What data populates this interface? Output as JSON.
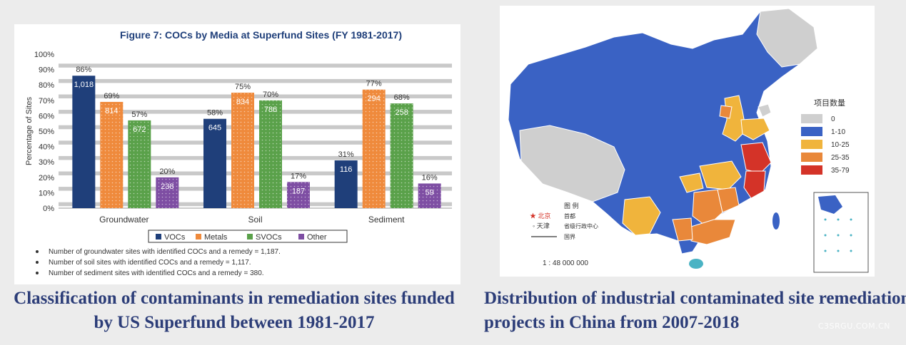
{
  "chart_data": {
    "type": "bar",
    "title": "Figure 7: COCs by Media at Superfund Sites (FY 1981-2017)",
    "ylabel": "Percentage of Sites",
    "xlabel": "",
    "ylim": [
      0,
      100
    ],
    "yticks": [
      "0%",
      "10%",
      "20%",
      "30%",
      "40%",
      "50%",
      "60%",
      "70%",
      "80%",
      "90%",
      "100%"
    ],
    "categories": [
      "Groundwater",
      "Soil",
      "Sediment"
    ],
    "series": [
      {
        "name": "VOCs",
        "color": "#1f3f7a",
        "values": [
          86,
          58,
          31
        ],
        "pct_labels": [
          "86%",
          "58%",
          "31%"
        ],
        "count_labels": [
          "1,018",
          "645",
          "116"
        ]
      },
      {
        "name": "Metals",
        "color": "#ef8a3c",
        "values": [
          69,
          75,
          77
        ],
        "pct_labels": [
          "69%",
          "75%",
          "77%"
        ],
        "count_labels": [
          "814",
          "834",
          "294"
        ]
      },
      {
        "name": "SVOCs",
        "color": "#5aa14a",
        "values": [
          57,
          70,
          68
        ],
        "pct_labels": [
          "57%",
          "70%",
          "68%"
        ],
        "count_labels": [
          "672",
          "786",
          "258"
        ]
      },
      {
        "name": "Other",
        "color": "#7e4ea3",
        "values": [
          20,
          17,
          16
        ],
        "pct_labels": [
          "20%",
          "17%",
          "16%"
        ],
        "count_labels": [
          "238",
          "187",
          "59"
        ]
      }
    ],
    "grid": true,
    "legend_position": "bottom"
  },
  "notes": [
    "Number of groundwater sites with identified COCs and a remedy = 1,187.",
    "Number of soil sites with identified COCs and a remedy = 1,117.",
    "Number of sediment sites with identified COCs and a remedy = 380."
  ],
  "captions": {
    "left": "Classification of contaminants in remediation sites funded by US Superfund between 1981-2017",
    "right": "Distribution of industrial contaminated site remediation projects in China from 2007-2018"
  },
  "map": {
    "legend_title": "项目数量",
    "legend": [
      {
        "label": "0",
        "color": "#cfcfcf"
      },
      {
        "label": "1-10",
        "color": "#3a62c4"
      },
      {
        "label": "10-25",
        "color": "#f0b43c"
      },
      {
        "label": "25-35",
        "color": "#e9883a"
      },
      {
        "label": "35-79",
        "color": "#d43328"
      }
    ],
    "inset_title": "图 例",
    "inset_items": [
      "北京",
      "首都",
      "天津",
      "省级行政中心",
      "国界"
    ],
    "scale": "1 : 48 000 000"
  },
  "watermark": "C3SRGU.COM.CN"
}
